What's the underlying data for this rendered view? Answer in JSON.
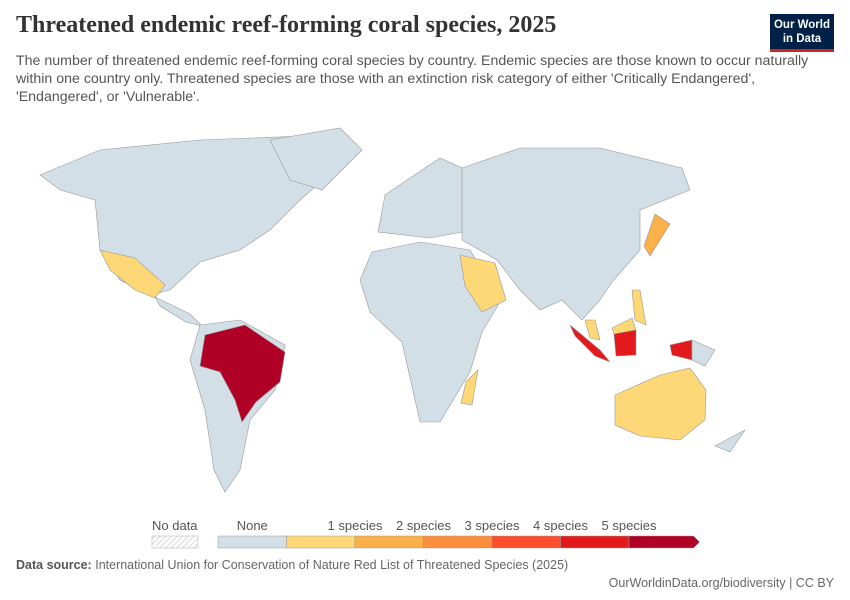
{
  "header": {
    "title": "Threatened endemic reef-forming coral species, 2025",
    "subtitle": "The number of threatened endemic reef-forming coral species by country. Endemic species are those known to occur naturally within one country only. Threatened species are those with an extinction risk category of either 'Critically Endangered', 'Endangered', or 'Vulnerable'.",
    "logo": "Our World in Data"
  },
  "legend": {
    "no_data": "No data",
    "bins": [
      {
        "label": "None",
        "color": "#d3dfe6"
      },
      {
        "label": "1 species",
        "color": "#fed876"
      },
      {
        "label": "2 species",
        "color": "#fcb04a"
      },
      {
        "label": "3 species",
        "color": "#fc8d3c"
      },
      {
        "label": "4 species",
        "color": "#fc4e2a"
      },
      {
        "label": "5 species",
        "color": "#e31a1c"
      },
      {
        "label": "",
        "color": "#b10026"
      }
    ]
  },
  "map_data": {
    "default": 0,
    "mexico": 1,
    "brazil": 6,
    "saudi-arabia": 1,
    "madagascar": 1,
    "japan": 2,
    "philippines": 1,
    "malaysia": 1,
    "indonesia": 5,
    "australia": 1
  },
  "footer": {
    "source_label": "Data source:",
    "source": "International Union for Conservation of Nature Red List of Threatened Species (2025)",
    "url": "OurWorldinData.org/biodiversity | CC BY"
  }
}
